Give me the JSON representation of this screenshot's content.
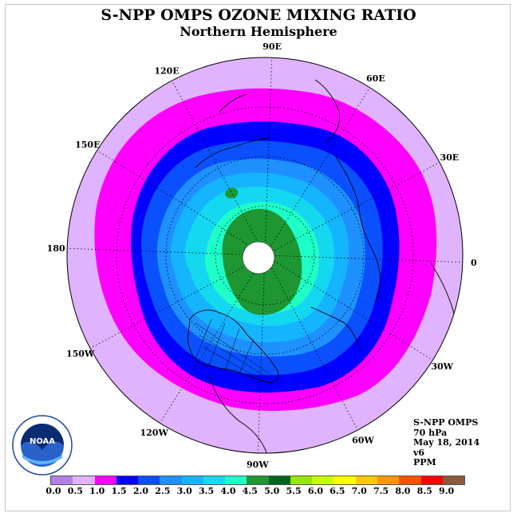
{
  "title": "S-NPP OMPS OZONE MIXING RATIO",
  "subtitle": "Northern Hemisphere",
  "info": {
    "instrument": "S-NPP OMPS",
    "level": "70 hPa",
    "date": "May 18, 2014",
    "version": "v6",
    "units": "PPM"
  },
  "logo": {
    "text": "NOAA"
  },
  "map": {
    "projection": "north-polar-stereographic",
    "longitude_labels": [
      {
        "label": "90E",
        "lon": 90
      },
      {
        "label": "60E",
        "lon": 60
      },
      {
        "label": "30E",
        "lon": 30
      },
      {
        "label": "0",
        "lon": 0
      },
      {
        "label": "30W",
        "lon": -30
      },
      {
        "label": "60W",
        "lon": -60
      },
      {
        "label": "90W",
        "lon": -90
      },
      {
        "label": "120W",
        "lon": -120
      },
      {
        "label": "150W",
        "lon": -150
      },
      {
        "label": "180",
        "lon": 180
      },
      {
        "label": "150E",
        "lon": 150
      },
      {
        "label": "120E",
        "lon": 120
      }
    ]
  },
  "colorbar": {
    "labels": [
      "0.0",
      "0.5",
      "1.0",
      "1.5",
      "2.0",
      "2.5",
      "3.0",
      "3.5",
      "4.0",
      "4.5",
      "5.0",
      "5.5",
      "6.0",
      "6.5",
      "7.0",
      "7.5",
      "8.0",
      "8.5",
      "9.0"
    ],
    "colors": [
      "#b380e6",
      "#e0b3ff",
      "#ff00ff",
      "#0000ff",
      "#0a50ff",
      "#1e90ff",
      "#15b4ff",
      "#14d8f0",
      "#1effc8",
      "#1e9632",
      "#00641e",
      "#96e600",
      "#c8ff00",
      "#ffff00",
      "#ffc800",
      "#ff9600",
      "#ff5000",
      "#ff0000",
      "#8b5a3c"
    ]
  }
}
